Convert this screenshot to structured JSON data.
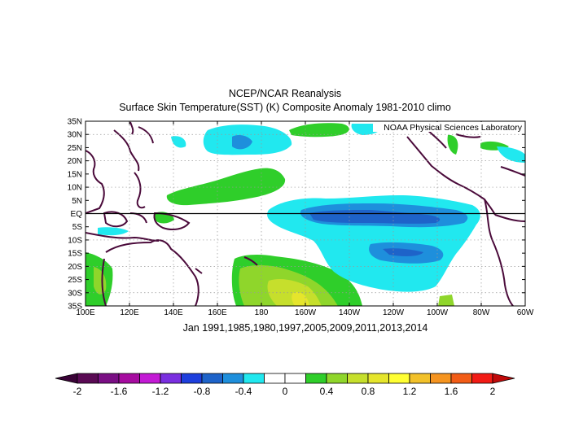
{
  "title": "NCEP/NCAR Reanalysis",
  "subtitle": "Surface Skin Temperature(SST) (K) Composite Anomaly 1981-2010 climo",
  "credit": "NOAA Physical Sciences Laboratory",
  "caption": "Jan 1991,1985,1980,1997,2005,2009,2011,2013,2014",
  "map": {
    "lat_labels": [
      "35N",
      "30N",
      "25N",
      "20N",
      "15N",
      "10N",
      "5N",
      "EQ",
      "5S",
      "10S",
      "15S",
      "20S",
      "25S",
      "30S",
      "35S"
    ],
    "lon_labels": [
      "100E",
      "120E",
      "140E",
      "160E",
      "180",
      "160W",
      "140W",
      "120W",
      "100W",
      "80W",
      "60W"
    ],
    "extent": {
      "lon_min": 100,
      "lon_max": 300,
      "lat_min": -35,
      "lat_max": 35
    }
  },
  "colorbar": {
    "labels": [
      "-2",
      "-1.6",
      "-1.2",
      "-0.8",
      "-0.4",
      "0",
      "0.4",
      "0.8",
      "1.2",
      "1.6",
      "2"
    ],
    "colors": [
      "#5a0a54",
      "#7a0f84",
      "#a60ca0",
      "#c31ad5",
      "#7a2fe0",
      "#1e3fdd",
      "#1e63c9",
      "#1e8fdc",
      "#21e8ef",
      "#ffffff",
      "#ffffff",
      "#2fce2a",
      "#8fd62b",
      "#c6df2c",
      "#e5e52c",
      "#ffff33",
      "#f2c12a",
      "#f59420",
      "#f25c16",
      "#f21b15"
    ],
    "low_color": "#3a0337",
    "high_color": "#c00a0a"
  }
}
